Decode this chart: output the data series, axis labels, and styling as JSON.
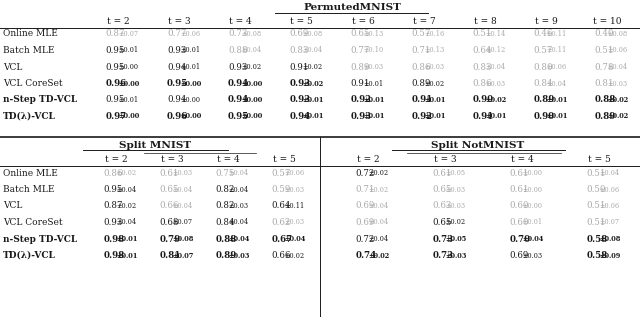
{
  "title_permuted": "PermutedMNIST",
  "title_split_mnist": "Split MNIST",
  "title_split_notmnist": "Split NotMNIST",
  "permuted_cols": [
    "t = 2",
    "t = 3",
    "t = 4",
    "t = 5",
    "t = 6",
    "t = 7",
    "t = 8",
    "t = 9",
    "t = 10"
  ],
  "split_cols": [
    "t = 2",
    "t = 3",
    "t = 4",
    "t = 5"
  ],
  "row_labels": [
    "Online MLE",
    "Batch MLE",
    "VCL",
    "VCL CoreSet",
    "n-Step TD-VCL",
    "TD(λ)-VCL"
  ],
  "permuted_data": [
    [
      "0.87±0.07",
      "0.77±0.06",
      "0.73±0.08",
      "0.69±0.08",
      "0.65±0.13",
      "0.57±0.16",
      "0.51±0.14",
      "0.46±0.11",
      "0.40±0.08"
    ],
    [
      "0.95±0.01",
      "0.93±0.01",
      "0.88±0.04",
      "0.83±0.04",
      "0.77±0.10",
      "0.71±0.13",
      "0.64±0.12",
      "0.57±0.11",
      "0.51±0.06"
    ],
    [
      "0.95±0.00",
      "0.94±0.01",
      "0.93±0.02",
      "0.91±0.02",
      "0.89±0.03",
      "0.86±0.03",
      "0.83±0.04",
      "0.80±0.06",
      "0.78±0.04"
    ],
    [
      "0.96±0.00",
      "0.95±0.00",
      "0.94±0.00",
      "0.93±0.02",
      "0.91±0.01",
      "0.89±0.02",
      "0.86±0.03",
      "0.84±0.04",
      "0.81±0.03"
    ],
    [
      "0.95±0.01",
      "0.94±0.00",
      "0.94±0.00",
      "0.93±0.01",
      "0.92±0.01",
      "0.91±0.01",
      "0.90±0.02",
      "0.89±0.01",
      "0.88±0.02"
    ],
    [
      "0.97±0.00",
      "0.96±0.00",
      "0.95±0.00",
      "0.94±0.01",
      "0.93±0.01",
      "0.92±0.01",
      "0.91±0.01",
      "0.90±0.01",
      "0.89±0.02"
    ]
  ],
  "permuted_bold": [
    [
      false,
      false,
      false,
      false,
      false,
      false,
      false,
      false,
      false
    ],
    [
      false,
      false,
      false,
      false,
      false,
      false,
      false,
      false,
      false
    ],
    [
      false,
      false,
      false,
      false,
      false,
      false,
      false,
      false,
      false
    ],
    [
      true,
      true,
      true,
      true,
      false,
      false,
      false,
      false,
      false
    ],
    [
      false,
      false,
      true,
      true,
      true,
      true,
      true,
      true,
      true
    ],
    [
      true,
      true,
      true,
      true,
      true,
      true,
      true,
      true,
      true
    ]
  ],
  "permuted_gray": [
    [
      true,
      true,
      true,
      true,
      true,
      true,
      true,
      true,
      true
    ],
    [
      false,
      false,
      true,
      true,
      true,
      true,
      true,
      true,
      true
    ],
    [
      false,
      false,
      false,
      false,
      true,
      true,
      true,
      true,
      true
    ],
    [
      false,
      false,
      false,
      false,
      false,
      false,
      true,
      true,
      true
    ],
    [
      false,
      false,
      false,
      false,
      false,
      false,
      false,
      false,
      false
    ],
    [
      false,
      false,
      false,
      false,
      false,
      false,
      false,
      false,
      false
    ]
  ],
  "split_mnist_data": [
    [
      "0.86±0.02",
      "0.61±0.03",
      "0.75±0.04",
      "0.57±0.06"
    ],
    [
      "0.95±0.04",
      "0.65±0.04",
      "0.82±0.04",
      "0.59±0.03"
    ],
    [
      "0.87±0.02",
      "0.66±0.04",
      "0.82±0.03",
      "0.64±0.11"
    ],
    [
      "0.93±0.04",
      "0.68±0.07",
      "0.84±0.04",
      "0.62±0.03"
    ],
    [
      "0.98±0.01",
      "0.79±0.08",
      "0.88±0.04",
      "0.67±0.04"
    ],
    [
      "0.98±0.01",
      "0.81±0.07",
      "0.89±0.03",
      "0.66±0.02"
    ]
  ],
  "split_mnist_bold": [
    [
      false,
      false,
      false,
      false
    ],
    [
      false,
      false,
      false,
      false
    ],
    [
      false,
      false,
      false,
      false
    ],
    [
      false,
      false,
      false,
      false
    ],
    [
      true,
      true,
      true,
      true
    ],
    [
      true,
      true,
      true,
      false
    ]
  ],
  "split_mnist_gray": [
    [
      true,
      true,
      true,
      true
    ],
    [
      false,
      true,
      false,
      true
    ],
    [
      false,
      true,
      false,
      false
    ],
    [
      false,
      false,
      false,
      true
    ],
    [
      false,
      false,
      false,
      false
    ],
    [
      false,
      false,
      false,
      false
    ]
  ],
  "split_notmnist_data": [
    [
      "0.72±0.02",
      "0.61±0.05",
      "0.61±0.00",
      "0.51±0.04"
    ],
    [
      "0.71±0.02",
      "0.65±0.03",
      "0.61±0.00",
      "0.50±0.06"
    ],
    [
      "0.69±0.04",
      "0.63±0.03",
      "0.60±0.00",
      "0.51±0.06"
    ],
    [
      "0.69±0.04",
      "0.65±0.02",
      "0.60±0.01",
      "0.51±0.07"
    ],
    [
      "0.72±0.04",
      "0.73±0.05",
      "0.70±0.04",
      "0.58±0.08"
    ],
    [
      "0.74±0.02",
      "0.73±0.03",
      "0.69±0.03",
      "0.58±0.09"
    ]
  ],
  "split_notmnist_bold": [
    [
      false,
      false,
      false,
      false
    ],
    [
      false,
      false,
      false,
      false
    ],
    [
      false,
      false,
      false,
      false
    ],
    [
      false,
      false,
      false,
      false
    ],
    [
      false,
      true,
      true,
      true
    ],
    [
      true,
      true,
      false,
      true
    ]
  ],
  "split_notmnist_gray": [
    [
      false,
      true,
      true,
      true
    ],
    [
      true,
      true,
      true,
      true
    ],
    [
      true,
      true,
      true,
      true
    ],
    [
      true,
      false,
      true,
      true
    ],
    [
      false,
      false,
      false,
      false
    ],
    [
      false,
      false,
      false,
      false
    ]
  ]
}
